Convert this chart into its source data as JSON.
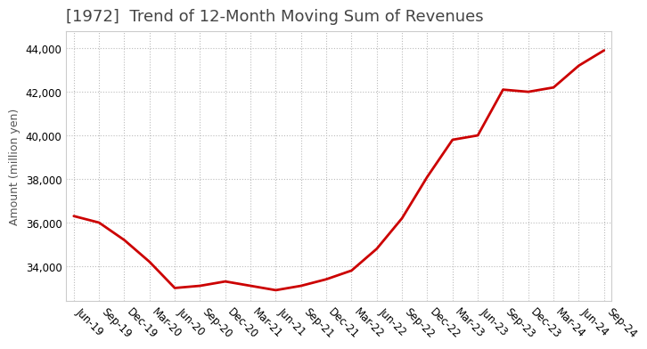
{
  "title": "[1972]  Trend of 12-Month Moving Sum of Revenues",
  "ylabel": "Amount (million yen)",
  "line_color": "#cc0000",
  "background_color": "#ffffff",
  "grid_color": "#bbbbbb",
  "x_labels": [
    "Jun-19",
    "Sep-19",
    "Dec-19",
    "Mar-20",
    "Jun-20",
    "Sep-20",
    "Dec-20",
    "Mar-21",
    "Jun-21",
    "Sep-21",
    "Dec-21",
    "Mar-22",
    "Jun-22",
    "Sep-22",
    "Dec-22",
    "Mar-23",
    "Jun-23",
    "Sep-23",
    "Dec-23",
    "Mar-24",
    "Jun-24",
    "Sep-24"
  ],
  "x_values": [
    0,
    1,
    2,
    3,
    4,
    5,
    6,
    7,
    8,
    9,
    10,
    11,
    12,
    13,
    14,
    15,
    16,
    17,
    18,
    19,
    20,
    21
  ],
  "y_values": [
    36300,
    36000,
    35200,
    34200,
    33000,
    33100,
    33300,
    33100,
    32900,
    33100,
    33400,
    33800,
    34800,
    36200,
    38100,
    39800,
    40000,
    42100,
    42000,
    42200,
    43200,
    43900
  ],
  "ylim": [
    32400,
    44800
  ],
  "yticks": [
    34000,
    36000,
    38000,
    40000,
    42000,
    44000
  ],
  "title_fontsize": 13,
  "title_color": "#444444",
  "axis_fontsize": 9,
  "tick_fontsize": 8.5,
  "ylabel_fontsize": 9
}
